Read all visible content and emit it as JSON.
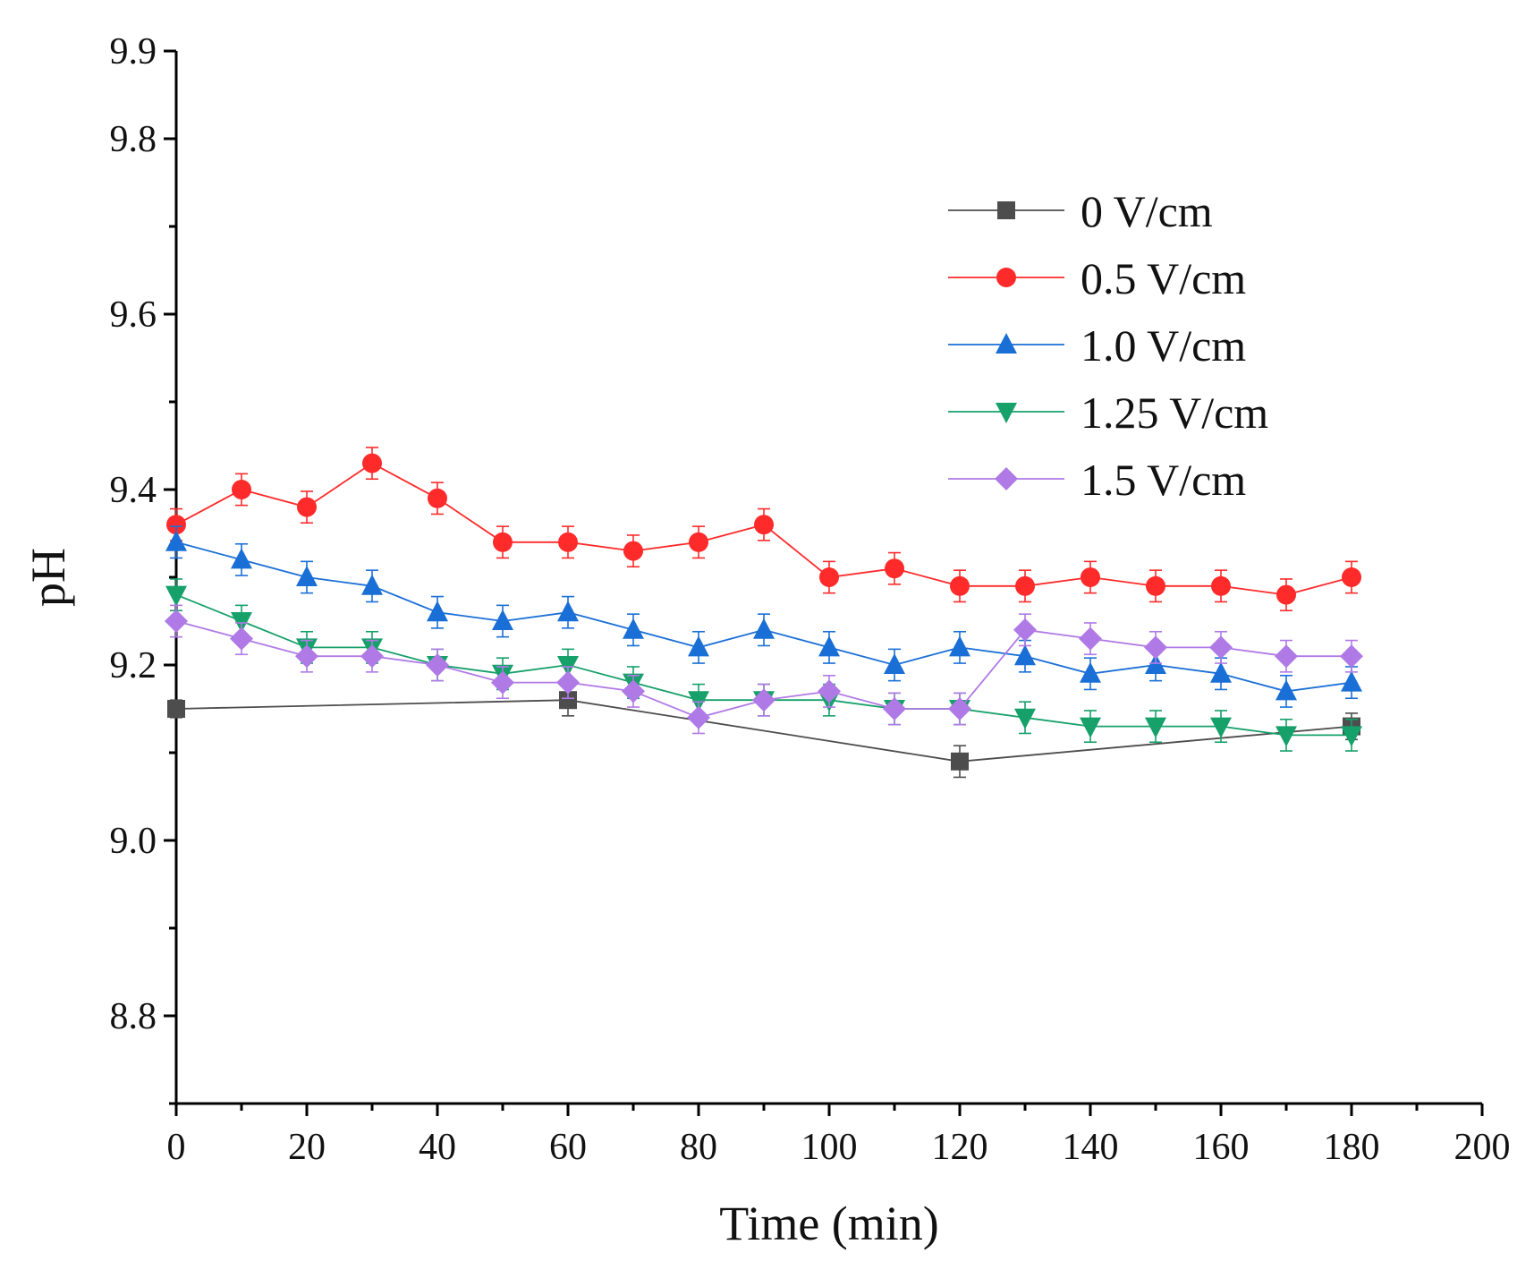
{
  "chart_data": {
    "type": "line",
    "title": "",
    "xlabel": "Time (min)",
    "ylabel": "pH",
    "xlim": [
      0,
      200
    ],
    "ylim": [
      8.7,
      9.9
    ],
    "xticks": [
      0,
      20,
      40,
      60,
      80,
      100,
      120,
      140,
      160,
      180,
      200
    ],
    "xtick_labels": [
      "0",
      "20",
      "40",
      "60",
      "80",
      "100",
      "120",
      "140",
      "160",
      "180",
      "200"
    ],
    "yticks": [
      8.8,
      9.0,
      9.2,
      9.4,
      9.6,
      9.8
    ],
    "ytick_labels": [
      "8.8",
      "9.0",
      "9.2",
      "9.4",
      "9.6",
      "9.8"
    ],
    "ytick_top_label": "9.9",
    "grid": false,
    "legend_position": "top-right",
    "series": [
      {
        "name": "0 V/cm",
        "color": "#4d4d4d",
        "marker": "square",
        "x": [
          0,
          60,
          120,
          180
        ],
        "y": [
          9.15,
          9.16,
          9.09,
          9.13
        ],
        "err": [
          0.01,
          0.018,
          0.018,
          0.015
        ]
      },
      {
        "name": "0.5 V/cm",
        "color": "#ff2a2a",
        "marker": "circle",
        "x": [
          0,
          10,
          20,
          30,
          40,
          50,
          60,
          70,
          80,
          90,
          100,
          110,
          120,
          130,
          140,
          150,
          160,
          170,
          180
        ],
        "y": [
          9.36,
          9.4,
          9.38,
          9.43,
          9.39,
          9.34,
          9.34,
          9.33,
          9.34,
          9.36,
          9.3,
          9.31,
          9.29,
          9.29,
          9.3,
          9.29,
          9.29,
          9.28,
          9.3
        ],
        "err": [
          0.018,
          0.018,
          0.018,
          0.018,
          0.018,
          0.018,
          0.018,
          0.018,
          0.018,
          0.018,
          0.018,
          0.018,
          0.018,
          0.018,
          0.018,
          0.018,
          0.018,
          0.018,
          0.018
        ]
      },
      {
        "name": "1.0 V/cm",
        "color": "#1a6fd6",
        "marker": "triangle-up",
        "x": [
          0,
          10,
          20,
          30,
          40,
          50,
          60,
          70,
          80,
          90,
          100,
          110,
          120,
          130,
          140,
          150,
          160,
          170,
          180
        ],
        "y": [
          9.34,
          9.32,
          9.3,
          9.29,
          9.26,
          9.25,
          9.26,
          9.24,
          9.22,
          9.24,
          9.22,
          9.2,
          9.22,
          9.21,
          9.19,
          9.2,
          9.19,
          9.17,
          9.18
        ],
        "err": [
          0.018,
          0.018,
          0.018,
          0.018,
          0.018,
          0.018,
          0.018,
          0.018,
          0.018,
          0.018,
          0.018,
          0.018,
          0.018,
          0.018,
          0.018,
          0.018,
          0.018,
          0.018,
          0.018
        ]
      },
      {
        "name": "1.25 V/cm",
        "color": "#16a06a",
        "marker": "triangle-down",
        "x": [
          0,
          10,
          20,
          30,
          40,
          50,
          60,
          70,
          80,
          90,
          100,
          110,
          120,
          130,
          140,
          150,
          160,
          170,
          180
        ],
        "y": [
          9.28,
          9.25,
          9.22,
          9.22,
          9.2,
          9.19,
          9.2,
          9.18,
          9.16,
          9.16,
          9.16,
          9.15,
          9.15,
          9.14,
          9.13,
          9.13,
          9.13,
          9.12,
          9.12
        ],
        "err": [
          0.018,
          0.018,
          0.018,
          0.018,
          0.018,
          0.018,
          0.018,
          0.018,
          0.018,
          0.018,
          0.018,
          0.018,
          0.018,
          0.018,
          0.018,
          0.018,
          0.018,
          0.018,
          0.018
        ]
      },
      {
        "name": "1.5 V/cm",
        "color": "#b07ae6",
        "marker": "diamond",
        "x": [
          0,
          10,
          20,
          30,
          40,
          50,
          60,
          70,
          80,
          90,
          100,
          110,
          120,
          130,
          140,
          150,
          160,
          170,
          180
        ],
        "y": [
          9.25,
          9.23,
          9.21,
          9.21,
          9.2,
          9.18,
          9.18,
          9.17,
          9.14,
          9.16,
          9.17,
          9.15,
          9.15,
          9.24,
          9.23,
          9.22,
          9.22,
          9.21,
          9.21
        ],
        "err": [
          0.018,
          0.018,
          0.018,
          0.018,
          0.018,
          0.018,
          0.018,
          0.018,
          0.018,
          0.018,
          0.018,
          0.018,
          0.018,
          0.018,
          0.018,
          0.018,
          0.018,
          0.018,
          0.018
        ]
      }
    ]
  }
}
